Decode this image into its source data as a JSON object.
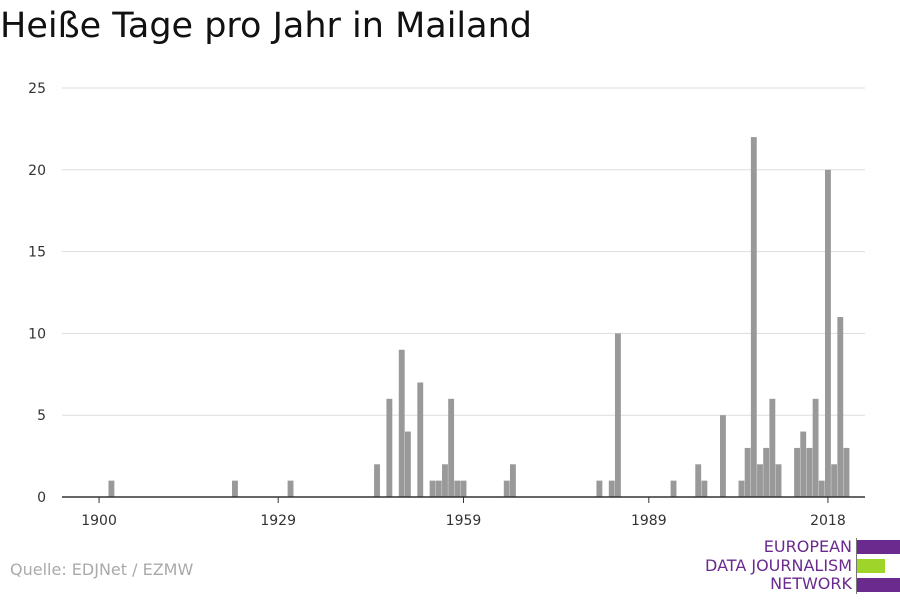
{
  "chart_data": {
    "type": "bar",
    "title": "Heiße Tage pro Jahr in Mailand",
    "xlabel": "",
    "ylabel": "",
    "xlim": [
      1894,
      2024
    ],
    "ylim": [
      0,
      25
    ],
    "yticks": [
      0,
      5,
      10,
      15,
      20,
      25
    ],
    "xticks": [
      1900,
      1929,
      1959,
      1989,
      2018
    ],
    "grid": true,
    "bar_color": "#999999",
    "x": [
      1902,
      1922,
      1931,
      1945,
      1947,
      1949,
      1950,
      1952,
      1954,
      1955,
      1956,
      1957,
      1958,
      1959,
      1966,
      1967,
      1981,
      1983,
      1984,
      1993,
      1997,
      1998,
      2001,
      2004,
      2005,
      2006,
      2007,
      2008,
      2009,
      2010,
      2013,
      2014,
      2015,
      2016,
      2017,
      2018,
      2019,
      2020,
      2021
    ],
    "values": [
      1,
      1,
      1,
      2,
      6,
      9,
      4,
      7,
      1,
      1,
      2,
      6,
      1,
      1,
      1,
      2,
      1,
      1,
      10,
      1,
      2,
      1,
      5,
      1,
      3,
      22,
      2,
      3,
      6,
      2,
      3,
      4,
      3,
      6,
      1,
      20,
      2,
      11,
      3
    ]
  },
  "source": "Quelle: EDJNet / EZMW",
  "logo": {
    "lines": [
      "EUROPEAN",
      "DATA JOURNALISM",
      "NETWORK"
    ],
    "colors": [
      "#6b2a8e",
      "#9fd42b",
      "#6b2a8e"
    ]
  }
}
